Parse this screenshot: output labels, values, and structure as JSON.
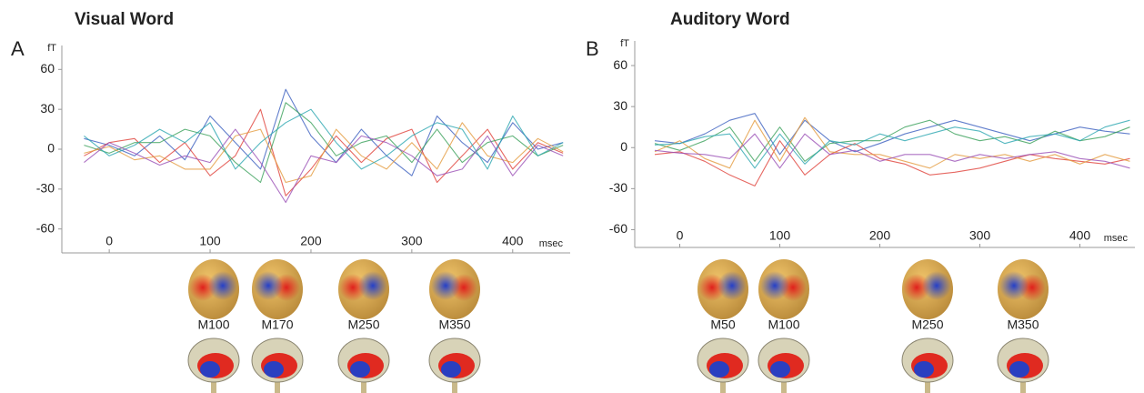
{
  "chart_data": [
    {
      "type": "line",
      "panel_label": "A",
      "title": "Visual Word",
      "y_label": "fT",
      "x_label": "msec",
      "xlim": [
        -47,
        457
      ],
      "ylim": [
        -78,
        78
      ],
      "xticks": [
        0,
        100,
        200,
        300,
        400
      ],
      "yticks": [
        -60,
        -30,
        0,
        30,
        60
      ],
      "x": [
        -25,
        0,
        25,
        50,
        75,
        100,
        125,
        150,
        175,
        200,
        225,
        250,
        275,
        300,
        325,
        350,
        375,
        400,
        425,
        450
      ],
      "series": [
        {
          "color": "#3b5fbf",
          "values": [
            8,
            3,
            -5,
            10,
            -8,
            25,
            5,
            -15,
            45,
            10,
            -10,
            15,
            -5,
            -20,
            25,
            5,
            -10,
            20,
            0,
            5
          ]
        },
        {
          "color": "#e0413a",
          "values": [
            -5,
            5,
            8,
            -10,
            5,
            -20,
            -5,
            30,
            -35,
            -15,
            10,
            -10,
            8,
            15,
            -25,
            -5,
            15,
            -15,
            5,
            -3
          ]
        },
        {
          "color": "#3aa05a",
          "values": [
            3,
            -3,
            5,
            5,
            15,
            10,
            -10,
            -25,
            35,
            20,
            -5,
            5,
            10,
            -10,
            15,
            -10,
            5,
            10,
            -5,
            3
          ]
        },
        {
          "color": "#e39a3c",
          "values": [
            -3,
            2,
            -8,
            -5,
            -15,
            -15,
            10,
            15,
            -25,
            -20,
            15,
            -5,
            -15,
            5,
            -15,
            20,
            -5,
            -10,
            8,
            -2
          ]
        },
        {
          "color": "#2aa6b0",
          "values": [
            10,
            -5,
            3,
            15,
            5,
            20,
            -15,
            5,
            20,
            30,
            5,
            -15,
            -5,
            10,
            20,
            15,
            -15,
            25,
            -5,
            5
          ]
        },
        {
          "color": "#9a4fb5",
          "values": [
            -10,
            5,
            -3,
            -12,
            -5,
            -10,
            15,
            -10,
            -40,
            -5,
            -10,
            10,
            5,
            -5,
            -20,
            -15,
            10,
            -20,
            3,
            -5
          ]
        }
      ],
      "components": [
        "M100",
        "M170",
        "M250",
        "M350"
      ]
    },
    {
      "type": "line",
      "panel_label": "B",
      "title": "Auditory Word",
      "y_label": "fT",
      "x_label": "msec",
      "xlim": [
        -45,
        455
      ],
      "ylim": [
        -73,
        78
      ],
      "xticks": [
        0,
        100,
        200,
        300,
        400
      ],
      "yticks": [
        -60,
        -30,
        0,
        30,
        60
      ],
      "x": [
        -25,
        0,
        25,
        50,
        75,
        100,
        125,
        150,
        175,
        200,
        225,
        250,
        275,
        300,
        325,
        350,
        375,
        400,
        425,
        450
      ],
      "series": [
        {
          "color": "#3b5fbf",
          "values": [
            5,
            3,
            10,
            20,
            25,
            -5,
            20,
            5,
            -3,
            3,
            10,
            15,
            20,
            15,
            10,
            5,
            10,
            15,
            12,
            10
          ]
        },
        {
          "color": "#e0413a",
          "values": [
            -5,
            -3,
            -10,
            -20,
            -28,
            5,
            -20,
            -5,
            3,
            -8,
            -12,
            -20,
            -18,
            -15,
            -10,
            -5,
            -8,
            -10,
            -12,
            -8
          ]
        },
        {
          "color": "#3aa05a",
          "values": [
            3,
            -2,
            5,
            15,
            -10,
            15,
            -10,
            3,
            5,
            5,
            15,
            20,
            10,
            5,
            8,
            3,
            12,
            5,
            8,
            15
          ]
        },
        {
          "color": "#e39a3c",
          "values": [
            -3,
            5,
            -8,
            -15,
            20,
            -10,
            22,
            -3,
            -5,
            -5,
            -10,
            -15,
            -5,
            -8,
            -5,
            -10,
            -5,
            -12,
            -5,
            -10
          ]
        },
        {
          "color": "#2aa6b0",
          "values": [
            2,
            3,
            8,
            10,
            -15,
            10,
            -12,
            5,
            2,
            10,
            5,
            10,
            15,
            12,
            3,
            8,
            10,
            5,
            15,
            20
          ]
        },
        {
          "color": "#9a4fb5",
          "values": [
            -2,
            -4,
            -5,
            -8,
            10,
            -15,
            10,
            -5,
            -2,
            -10,
            -5,
            -5,
            -10,
            -5,
            -8,
            -5,
            -3,
            -8,
            -10,
            -15
          ]
        }
      ],
      "components": [
        "M50",
        "M100",
        "M250",
        "M350"
      ]
    }
  ]
}
